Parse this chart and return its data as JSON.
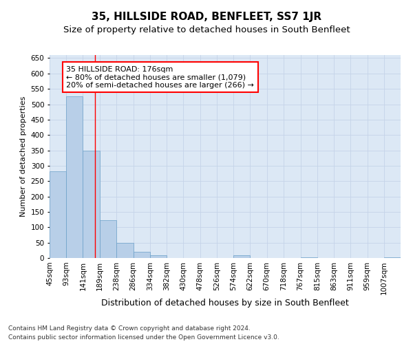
{
  "title": "35, HILLSIDE ROAD, BENFLEET, SS7 1JR",
  "subtitle": "Size of property relative to detached houses in South Benfleet",
  "xlabel": "Distribution of detached houses by size in South Benfleet",
  "ylabel": "Number of detached properties",
  "footnote1": "Contains HM Land Registry data © Crown copyright and database right 2024.",
  "footnote2": "Contains public sector information licensed under the Open Government Licence v3.0.",
  "annotation_title": "35 HILLSIDE ROAD: 176sqm",
  "annotation_line1": "← 80% of detached houses are smaller (1,079)",
  "annotation_line2": "20% of semi-detached houses are larger (266) →",
  "bin_edges": [
    45,
    93,
    141,
    189,
    238,
    286,
    334,
    382,
    430,
    478,
    526,
    574,
    622,
    670,
    718,
    767,
    815,
    863,
    911,
    959,
    1007
  ],
  "bar_heights": [
    283,
    525,
    348,
    122,
    50,
    20,
    10,
    0,
    0,
    0,
    0,
    8,
    0,
    0,
    0,
    3,
    0,
    0,
    0,
    0,
    3
  ],
  "bar_color": "#b8cfe8",
  "bar_edge_color": "#6a9fc8",
  "grid_color": "#c5d3e8",
  "background_color": "#dce8f5",
  "fig_background": "#ffffff",
  "red_line_x": 176,
  "ylim": [
    0,
    660
  ],
  "yticks": [
    0,
    50,
    100,
    150,
    200,
    250,
    300,
    350,
    400,
    450,
    500,
    550,
    600,
    650
  ],
  "title_fontsize": 11,
  "subtitle_fontsize": 9.5,
  "xlabel_fontsize": 9,
  "ylabel_fontsize": 8,
  "tick_fontsize": 7.5,
  "annotation_fontsize": 8,
  "footnote_fontsize": 6.5
}
